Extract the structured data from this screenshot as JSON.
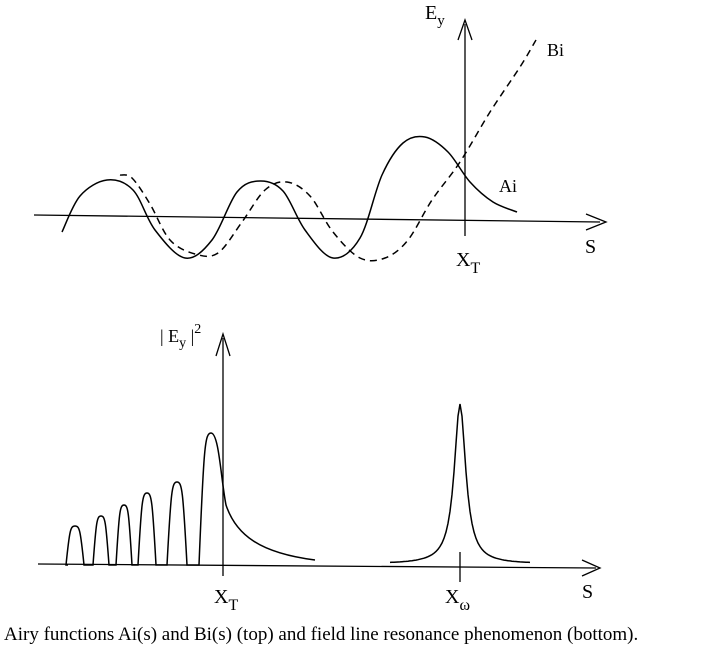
{
  "top_panel": {
    "y_axis_label": "E",
    "y_axis_subscript": "y",
    "x_axis_label": "S",
    "turning_point_label": "X",
    "turning_point_subscript": "T",
    "curve_ai_label": "Ai",
    "curve_bi_label": "Bi"
  },
  "bottom_panel": {
    "y_axis_label_prefix": "| E",
    "y_axis_label_subscript": "y",
    "y_axis_label_suffix": " |",
    "y_axis_label_superscript": "2",
    "x_axis_label": "S",
    "turning_point_label": "X",
    "turning_point_subscript": "T",
    "resonance_label": "X",
    "resonance_subscript": "ω"
  },
  "caption": "Airy functions Ai(s) and Bi(s) (top) and field line resonance phenomenon (bottom)."
}
